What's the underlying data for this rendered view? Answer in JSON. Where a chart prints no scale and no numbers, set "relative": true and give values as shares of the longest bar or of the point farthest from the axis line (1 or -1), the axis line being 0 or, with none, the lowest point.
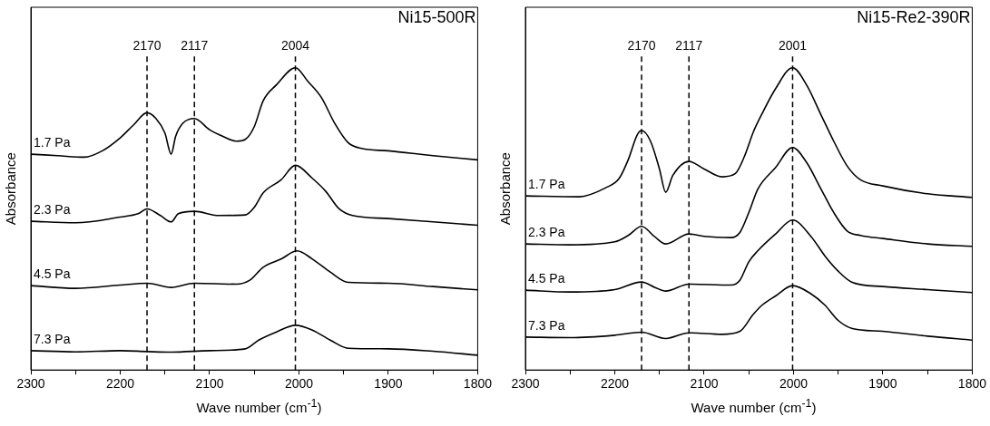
{
  "chart_data": [
    {
      "type": "line",
      "title": "Ni15-500R",
      "xlabel": "Wave number (cm$^{-1}$)",
      "ylabel": "Absorbance",
      "relative": true,
      "legend": false,
      "marker": "none",
      "line_style": "solid",
      "tick_labels": "x",
      "xlim": [
        2300,
        1800
      ],
      "xticks": [
        2300,
        {
          "value": 2250,
          "label": null
        },
        2200,
        {
          "value": 2150,
          "label": null
        },
        2100,
        {
          "value": 2050,
          "label": null
        },
        2000,
        {
          "value": 1950,
          "label": null
        },
        1900,
        {
          "value": 1850,
          "label": null
        },
        1800
      ],
      "ref_lines": [
        {
          "axis": "x",
          "value": 2170,
          "label": "2170",
          "color": "#000000",
          "line_style": "dashed"
        },
        {
          "axis": "x",
          "value": 2117,
          "label": "2117",
          "color": "#000000",
          "line_style": "dashed"
        },
        {
          "axis": "x",
          "value": 2004,
          "label": "2004",
          "color": "#000000",
          "line_style": "dashed"
        }
      ],
      "series": [
        {
          "name": "1.7 Pa",
          "color": "#000000",
          "x": [
            2300,
            2270,
            2240,
            2220,
            2200,
            2185,
            2170,
            2160,
            2150,
            2143,
            2138,
            2130,
            2117,
            2100,
            2085,
            2070,
            2060,
            2050,
            2040,
            2025,
            2004,
            1990,
            1975,
            1960,
            1945,
            1930,
            1900,
            1850,
            1800
          ],
          "values": [
            0.714,
            0.709,
            0.704,
            0.725,
            0.768,
            0.811,
            0.851,
            0.832,
            0.784,
            0.714,
            0.773,
            0.816,
            0.832,
            0.795,
            0.773,
            0.757,
            0.763,
            0.805,
            0.891,
            0.944,
            1.0,
            0.955,
            0.902,
            0.816,
            0.752,
            0.733,
            0.725,
            0.709,
            0.695
          ]
        },
        {
          "name": "2.3 Pa",
          "color": "#000000",
          "x": [
            2300,
            2250,
            2200,
            2180,
            2170,
            2155,
            2143,
            2135,
            2117,
            2090,
            2060,
            2050,
            2040,
            2020,
            2004,
            1985,
            1970,
            1955,
            1940,
            1900,
            1850,
            1800
          ],
          "values": [
            0.492,
            0.487,
            0.506,
            0.517,
            0.533,
            0.511,
            0.49,
            0.517,
            0.525,
            0.511,
            0.513,
            0.538,
            0.586,
            0.629,
            0.677,
            0.634,
            0.591,
            0.533,
            0.511,
            0.501,
            0.49,
            0.479
          ]
        },
        {
          "name": "4.5 Pa",
          "color": "#000000",
          "x": [
            2300,
            2250,
            2200,
            2170,
            2143,
            2117,
            2070,
            2055,
            2040,
            2020,
            2002,
            1985,
            1965,
            1945,
            1900,
            1850,
            1800
          ],
          "values": [
            0.279,
            0.27,
            0.281,
            0.287,
            0.273,
            0.287,
            0.284,
            0.297,
            0.34,
            0.367,
            0.394,
            0.367,
            0.324,
            0.29,
            0.287,
            0.276,
            0.265
          ]
        },
        {
          "name": "7.3 Pa",
          "color": "#000000",
          "x": [
            2300,
            2250,
            2200,
            2170,
            2143,
            2100,
            2060,
            2045,
            2025,
            2004,
            1985,
            1965,
            1945,
            1900,
            1850,
            1800
          ],
          "values": [
            0.064,
            0.06,
            0.064,
            0.061,
            0.059,
            0.064,
            0.07,
            0.099,
            0.126,
            0.148,
            0.132,
            0.099,
            0.072,
            0.07,
            0.062,
            0.049
          ]
        }
      ]
    },
    {
      "type": "line",
      "title": "Ni15-Re2-390R",
      "xlabel": "Wave number (cm$^{-1}$)",
      "ylabel": "Absorbance",
      "relative": true,
      "legend": false,
      "marker": "none",
      "line_style": "solid",
      "tick_labels": "x",
      "xlim": [
        2300,
        1800
      ],
      "xticks": [
        2300,
        {
          "value": 2250,
          "label": null
        },
        2200,
        {
          "value": 2150,
          "label": null
        },
        2100,
        {
          "value": 2050,
          "label": null
        },
        2000,
        {
          "value": 1950,
          "label": null
        },
        1900,
        {
          "value": 1850,
          "label": null
        },
        1800
      ],
      "ref_lines": [
        {
          "axis": "x",
          "value": 2170,
          "label": "2170",
          "color": "#000000",
          "line_style": "dashed"
        },
        {
          "axis": "x",
          "value": 2117,
          "label": "2117",
          "color": "#000000",
          "line_style": "dashed"
        },
        {
          "axis": "x",
          "value": 2001,
          "label": "2001",
          "color": "#000000",
          "line_style": "dashed"
        }
      ],
      "series": [
        {
          "name": "1.7 Pa",
          "color": "#000000",
          "x": [
            2300,
            2240,
            2210,
            2195,
            2185,
            2175,
            2170,
            2160,
            2150,
            2143,
            2135,
            2117,
            2100,
            2080,
            2065,
            2055,
            2045,
            2035,
            2020,
            2001,
            1985,
            1970,
            1955,
            1940,
            1925,
            1900,
            1850,
            1800
          ],
          "values": [
            0.576,
            0.573,
            0.603,
            0.634,
            0.695,
            0.777,
            0.792,
            0.757,
            0.665,
            0.588,
            0.644,
            0.69,
            0.665,
            0.639,
            0.65,
            0.706,
            0.787,
            0.849,
            0.931,
            1.0,
            0.941,
            0.849,
            0.757,
            0.675,
            0.629,
            0.609,
            0.583,
            0.571
          ]
        },
        {
          "name": "2.3 Pa",
          "color": "#000000",
          "x": [
            2300,
            2250,
            2200,
            2185,
            2170,
            2155,
            2143,
            2117,
            2100,
            2070,
            2060,
            2050,
            2040,
            2020,
            2001,
            1985,
            1970,
            1955,
            1940,
            1925,
            1900,
            1850,
            1800
          ],
          "values": [
            0.417,
            0.414,
            0.424,
            0.445,
            0.475,
            0.44,
            0.417,
            0.45,
            0.442,
            0.438,
            0.455,
            0.521,
            0.598,
            0.67,
            0.736,
            0.685,
            0.603,
            0.521,
            0.46,
            0.445,
            0.435,
            0.417,
            0.409
          ]
        },
        {
          "name": "4.5 Pa",
          "color": "#000000",
          "x": [
            2300,
            2250,
            2200,
            2170,
            2155,
            2143,
            2117,
            2070,
            2060,
            2050,
            2040,
            2020,
            2001,
            1980,
            1965,
            1950,
            1935,
            1900,
            1850,
            1800
          ],
          "values": [
            0.264,
            0.258,
            0.266,
            0.291,
            0.273,
            0.261,
            0.284,
            0.281,
            0.297,
            0.358,
            0.394,
            0.45,
            0.496,
            0.44,
            0.378,
            0.327,
            0.291,
            0.276,
            0.266,
            0.256
          ]
        },
        {
          "name": "7.3 Pa",
          "color": "#000000",
          "x": [
            2300,
            2250,
            2200,
            2170,
            2143,
            2117,
            2080,
            2060,
            2045,
            2035,
            2020,
            2001,
            1980,
            1965,
            1950,
            1935,
            1900,
            1850,
            1800
          ],
          "values": [
            0.109,
            0.107,
            0.115,
            0.125,
            0.104,
            0.123,
            0.118,
            0.128,
            0.184,
            0.215,
            0.245,
            0.279,
            0.251,
            0.215,
            0.164,
            0.138,
            0.128,
            0.112,
            0.099
          ]
        }
      ]
    }
  ]
}
